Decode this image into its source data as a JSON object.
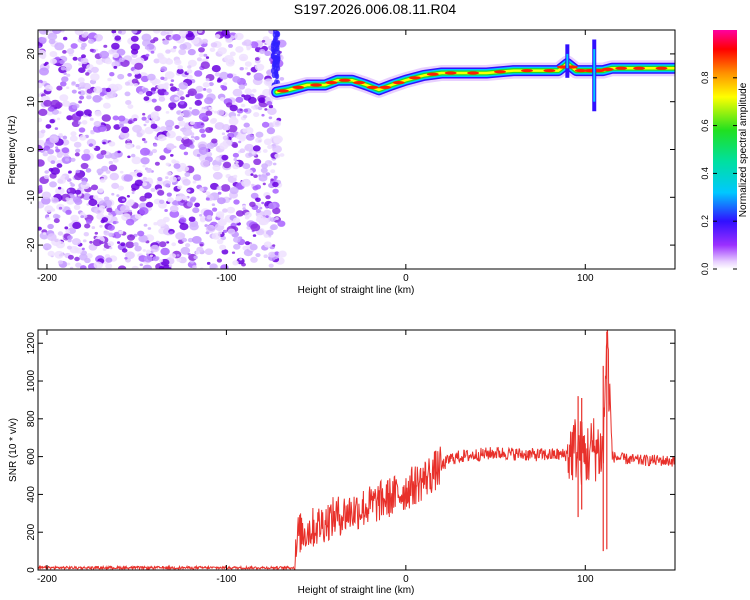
{
  "title": "S197.2026.006.08.11.R04",
  "chart_data": [
    {
      "type": "heatmap",
      "xlabel": "Height of straight line (km)",
      "ylabel": "Frequency (Hz)",
      "xlim": [
        -205,
        150
      ],
      "ylim": [
        -25,
        25
      ],
      "x_ticks": [
        -200,
        -100,
        0,
        100
      ],
      "y_ticks": [
        -20,
        -10,
        0,
        10,
        20
      ],
      "colorbar": {
        "label": "Normalized spectral amplitude",
        "range": [
          0,
          1
        ],
        "ticks": [
          0.0,
          0.2,
          0.4,
          0.6,
          0.8
        ]
      },
      "noise_region_x": [
        -205,
        -72
      ],
      "signal_ridge": {
        "x": [
          -72,
          -65,
          -55,
          -45,
          -38,
          -30,
          -22,
          -15,
          -8,
          0,
          10,
          20,
          30,
          45,
          60,
          75,
          85,
          90,
          95,
          100,
          105,
          110,
          115,
          125,
          135,
          150
        ],
        "frequency": [
          12,
          12.5,
          13.5,
          13.5,
          14.5,
          14.5,
          13.5,
          12.5,
          13.5,
          14.5,
          15.5,
          16,
          16,
          16,
          16.5,
          16.5,
          16.5,
          18,
          16.5,
          16.5,
          16.5,
          16.5,
          17,
          17,
          17,
          17
        ]
      }
    },
    {
      "type": "line",
      "xlabel": "Height of straight line (km)",
      "ylabel": "SNR (10 * v/v)",
      "xlim": [
        -205,
        150
      ],
      "ylim": [
        0,
        1270
      ],
      "x_ticks": [
        -200,
        -100,
        0,
        100
      ],
      "y_ticks": [
        0,
        200,
        400,
        600,
        800,
        1000,
        1200
      ],
      "series": [
        {
          "name": "SNR",
          "color": "#e8302a",
          "x": [
            -205,
            -150,
            -100,
            -62,
            -60,
            -55,
            -50,
            -40,
            -30,
            -20,
            -10,
            0,
            10,
            20,
            25,
            30,
            40,
            50,
            60,
            70,
            80,
            90,
            95,
            100,
            105,
            110,
            112,
            115,
            120,
            130,
            140,
            150
          ],
          "y": [
            10,
            12,
            12,
            12,
            190,
            210,
            230,
            280,
            310,
            340,
            380,
            420,
            480,
            550,
            590,
            600,
            610,
            620,
            615,
            610,
            610,
            610,
            650,
            600,
            650,
            620,
            1250,
            600,
            590,
            580,
            580,
            575
          ],
          "spikes": [
            {
              "x": 96,
              "min": 280,
              "max": 920
            },
            {
              "x": 98,
              "min": 320,
              "max": 910
            },
            {
              "x": 110,
              "min": 100,
              "max": 1080
            },
            {
              "x": 112,
              "min": 110,
              "max": 1260
            }
          ]
        }
      ]
    }
  ]
}
